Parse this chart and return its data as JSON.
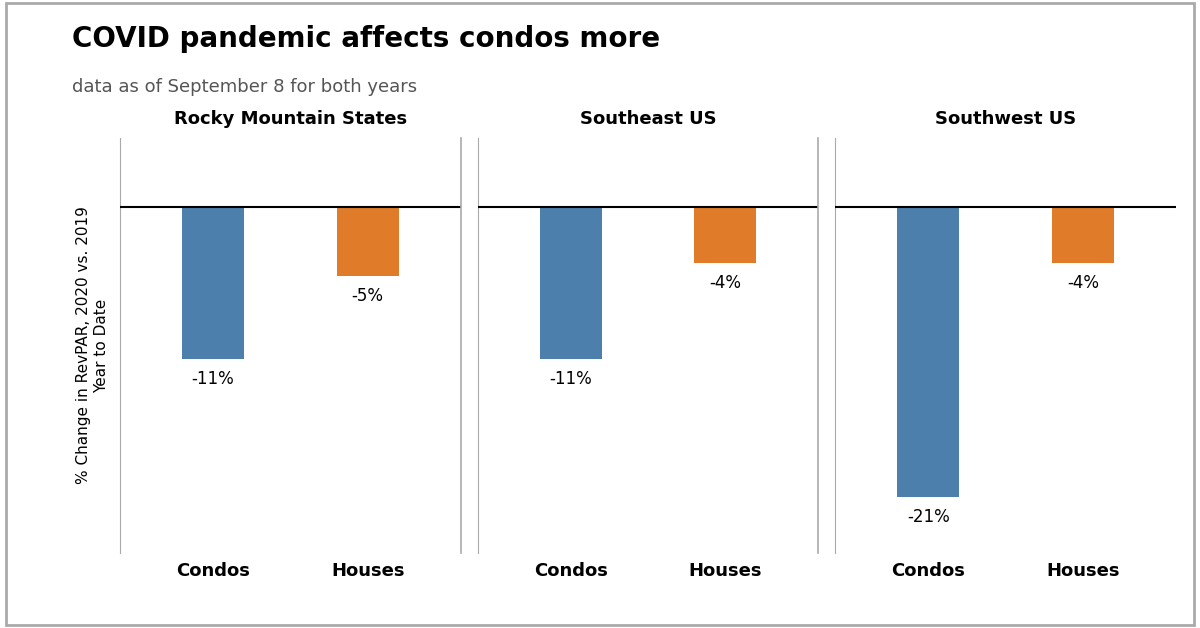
{
  "title": "COVID pandemic affects condos more",
  "subtitle": "data as of September 8 for both years",
  "ylabel": "% Change in RevPAR, 2020 vs. 2019\nYear to Date",
  "regions": [
    "Rocky Mountain States",
    "Southeast US",
    "Southwest US"
  ],
  "categories": [
    "Condos",
    "Houses"
  ],
  "values": {
    "Rocky Mountain States": {
      "Condos": -11,
      "Houses": -5
    },
    "Southeast US": {
      "Condos": -11,
      "Houses": -4
    },
    "Southwest US": {
      "Condos": -21,
      "Houses": -4
    }
  },
  "bar_colors": {
    "Condos": "#4d7fad",
    "Houses": "#e07b2a"
  },
  "background_color": "#ffffff",
  "ylim": [
    -25,
    5
  ],
  "bar_width": 0.4,
  "title_fontsize": 20,
  "subtitle_fontsize": 13,
  "region_label_fontsize": 13,
  "tick_label_fontsize": 13,
  "ylabel_fontsize": 11,
  "value_label_fontsize": 12,
  "divider_color": "#aaaaaa",
  "zero_line_color": "#000000",
  "border_color": "#aaaaaa"
}
